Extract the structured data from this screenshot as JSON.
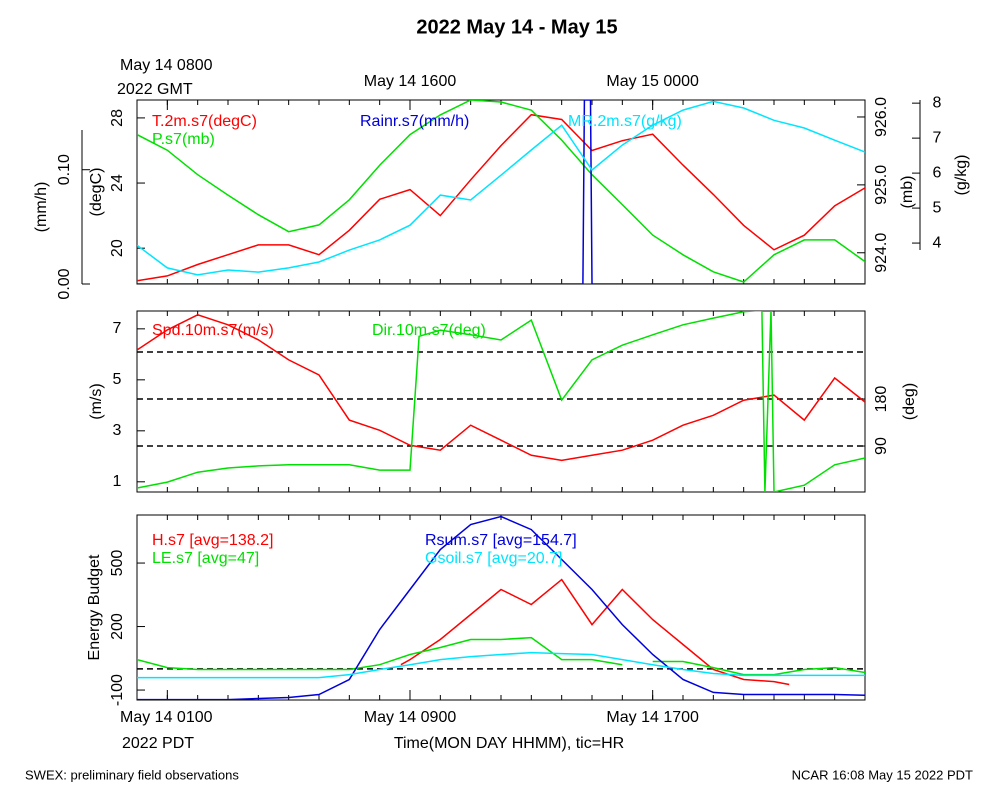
{
  "title": "2022 May 14 - May 15",
  "footer_left": "SWEX: preliminary field observations",
  "footer_right": "NCAR 16:08 May 15 2022 PDT",
  "chart_data": [
    {
      "type": "line",
      "xlim": [
        0,
        24
      ],
      "x": [
        0,
        1,
        2,
        3,
        4,
        5,
        6,
        7,
        8,
        9,
        10,
        11,
        12,
        13,
        14,
        15,
        16,
        17,
        18,
        19,
        20,
        21,
        22,
        23,
        24
      ],
      "hour_ticks": [
        0,
        1,
        2,
        3,
        4,
        5,
        6,
        7,
        8,
        9,
        10,
        11,
        12,
        13,
        14,
        15,
        16,
        17,
        18,
        19,
        20,
        21,
        22,
        23,
        24
      ],
      "xticks": [
        {
          "value": 1,
          "label": "May 14 0800"
        },
        {
          "value": 9,
          "label": "May 14 1600"
        },
        {
          "value": 17,
          "label": "May 15 0000"
        }
      ],
      "x_sublabel": "2022 GMT",
      "axes": [
        {
          "label": "(degC)",
          "lim": [
            17.8,
            29.1
          ],
          "ticks": [
            20,
            24,
            28
          ]
        },
        {
          "label": "(mm/h)",
          "lim": [
            0,
            0.161
          ],
          "ticks": [
            {
              "value": 0,
              "label": "0.00"
            },
            {
              "value": 0.1,
              "label": "0.10"
            }
          ]
        },
        {
          "label": "(mb)",
          "lim": [
            923.54,
            926.25
          ],
          "ticks": [
            {
              "value": 924,
              "label": "924.0"
            },
            {
              "value": 925,
              "label": "925.0"
            },
            {
              "value": 926,
              "label": "926.0"
            }
          ]
        },
        {
          "label": "(g/kg)",
          "lim": [
            2.83,
            8.09
          ],
          "ticks": [
            4,
            5,
            6,
            7,
            8
          ]
        }
      ],
      "series": [
        {
          "name": "T.2m.s7(degC)",
          "color": "#ff0000",
          "axis": 0,
          "values": [
            18.0,
            18.3,
            19.0,
            19.6,
            20.2,
            20.2,
            19.6,
            21.1,
            23.0,
            23.6,
            22.0,
            24.2,
            26.3,
            28.2,
            27.9,
            26.0,
            26.6,
            27.0,
            25.1,
            23.3,
            21.4,
            19.9,
            20.8,
            22.6,
            23.7
          ]
        },
        {
          "name": "P.s7(mb)",
          "color": "#00e000",
          "axis": 2,
          "values": [
            925.74,
            925.51,
            925.15,
            924.85,
            924.56,
            924.31,
            924.41,
            924.78,
            925.29,
            925.74,
            926.03,
            926.25,
            926.22,
            926.1,
            925.66,
            925.15,
            924.71,
            924.26,
            923.97,
            923.72,
            923.57,
            923.97,
            924.19,
            924.19,
            923.87
          ]
        },
        {
          "name": "Rainr.s7(mm/h)",
          "color": "#0000dd",
          "axis": 1,
          "x": [
            0,
            14.7,
            14.75,
            14.95,
            15.0,
            24
          ],
          "values": [
            0,
            0,
            0.161,
            0.161,
            0,
            0
          ]
        },
        {
          "name": "MR.2m.s7(g/kg)",
          "color": "#00e5ff",
          "axis": 3,
          "values": [
            3.94,
            3.29,
            3.09,
            3.23,
            3.17,
            3.29,
            3.46,
            3.8,
            4.09,
            4.51,
            5.37,
            5.23,
            5.94,
            6.66,
            7.37,
            6.09,
            6.8,
            7.37,
            7.8,
            8.05,
            7.86,
            7.51,
            7.29,
            6.94,
            6.6
          ]
        }
      ]
    },
    {
      "type": "line",
      "xlim": [
        0,
        24
      ],
      "x": [
        0,
        1,
        2,
        3,
        4,
        5,
        6,
        7,
        8,
        9,
        10,
        11,
        12,
        13,
        14,
        15,
        16,
        17,
        18,
        19,
        20,
        21,
        22,
        23,
        24
      ],
      "hour_ticks": [
        0,
        1,
        2,
        3,
        4,
        5,
        6,
        7,
        8,
        9,
        10,
        11,
        12,
        13,
        14,
        15,
        16,
        17,
        18,
        19,
        20,
        21,
        22,
        23,
        24
      ],
      "axes": [
        {
          "label": "(m/s)",
          "lim": [
            0.6,
            7.7
          ],
          "ticks": [
            1,
            3,
            5,
            7
          ]
        },
        {
          "label": "(deg)",
          "lim": [
            2,
            348.5
          ],
          "ticks": [
            90,
            180
          ]
        }
      ],
      "hlines": [
        90,
        180,
        270
      ],
      "hline_axis": 1,
      "series": [
        {
          "name": "Spd.10m.s7(m/s)",
          "color": "#ff0000",
          "axis": 0,
          "values": [
            6.17,
            6.96,
            7.55,
            7.16,
            6.57,
            5.78,
            5.19,
            3.42,
            3.02,
            2.43,
            2.24,
            3.22,
            2.63,
            2.04,
            1.84,
            2.04,
            2.24,
            2.63,
            3.22,
            3.61,
            4.2,
            4.4,
            3.42,
            5.07,
            4.13
          ]
        },
        {
          "name": "Dir.10m.s7(deg)",
          "color": "#00e000",
          "axis": 1,
          "x": [
            0,
            1,
            2,
            3,
            4,
            5,
            6,
            7,
            8,
            9,
            9.3,
            10,
            11,
            12,
            13,
            14,
            15,
            16,
            17,
            18,
            19,
            20,
            20.6,
            20.7,
            20.9,
            21.0,
            22,
            23,
            24
          ],
          "values": [
            9.6,
            21,
            40,
            48,
            52,
            54,
            54,
            54,
            44,
            44,
            300,
            312,
            303,
            293,
            331,
            178,
            255,
            283,
            303,
            322,
            335,
            347,
            350,
            2,
            350,
            2,
            15,
            54,
            67
          ]
        }
      ]
    },
    {
      "type": "line",
      "xlim": [
        0,
        24
      ],
      "x": [
        0,
        1,
        2,
        3,
        4,
        5,
        6,
        7,
        8,
        9,
        10,
        11,
        12,
        13,
        14,
        15,
        16,
        17,
        18,
        19,
        20,
        21,
        22,
        23,
        24
      ],
      "hour_ticks": [
        0,
        1,
        2,
        3,
        4,
        5,
        6,
        7,
        8,
        9,
        10,
        11,
        12,
        13,
        14,
        15,
        16,
        17,
        18,
        19,
        20,
        21,
        22,
        23,
        24
      ],
      "xticks": [
        {
          "value": 1,
          "label": "May 14 0100"
        },
        {
          "value": 9,
          "label": "May 14 0900"
        },
        {
          "value": 17,
          "label": "May 14 1700"
        }
      ],
      "x_sublabel": "2022 PDT",
      "xlabel": "Time(MON DAY HHMM), tic=HR",
      "axes": [
        {
          "label": "Energy Budget",
          "lim": [
            -147,
            727
          ],
          "ticks": [
            -100,
            200,
            500
          ]
        }
      ],
      "hlines": [
        0
      ],
      "hline_axis": 0,
      "series": [
        {
          "name": "H.s7 [avg=138.2]",
          "color": "#ff0000",
          "axis": 0,
          "x": [
            8.7,
            9,
            10,
            11,
            12,
            13,
            14,
            15,
            16,
            17,
            18,
            19,
            20,
            21,
            21.5
          ],
          "values": [
            20,
            44,
            139,
            257,
            375,
            304,
            422,
            209,
            375,
            233,
            115,
            -3,
            -50,
            -60,
            -74
          ]
        },
        {
          "name": "LE.s7 [avg=47]",
          "color": "#00e000",
          "axis": 0,
          "x": [
            0,
            1,
            2,
            3,
            4,
            5,
            6,
            7,
            8,
            9,
            10,
            11,
            12,
            13,
            14,
            15,
            16,
            16.5,
            17,
            18,
            19,
            20,
            21,
            22,
            23,
            24
          ],
          "values": [
            44,
            6,
            -3,
            -3,
            -3,
            -3,
            -3,
            -3,
            20,
            68,
            101,
            139,
            139,
            148,
            44,
            44,
            20,
            null,
            35,
            35,
            6,
            -27,
            -27,
            -3,
            6,
            -17
          ]
        },
        {
          "name": "Rsum.s7 [avg=154.7]",
          "color": "#0000dd",
          "axis": 0,
          "values": [
            -145,
            -145,
            -145,
            -145,
            -140,
            -135,
            -121,
            -50,
            186,
            375,
            564,
            682,
            720,
            658,
            517,
            375,
            209,
            68,
            -50,
            -111,
            -121,
            -121,
            -121,
            -121,
            -125
          ]
        },
        {
          "name": "Gsoil.s7 [avg=20.7]",
          "color": "#00e5ff",
          "axis": 0,
          "values": [
            -41,
            -41,
            -41,
            -41,
            -41,
            -41,
            -41,
            -27,
            -3,
            20,
            44,
            58,
            68,
            77,
            72,
            68,
            44,
            20,
            -3,
            -22,
            -31,
            -31,
            -31,
            -31,
            -31
          ]
        }
      ]
    }
  ]
}
